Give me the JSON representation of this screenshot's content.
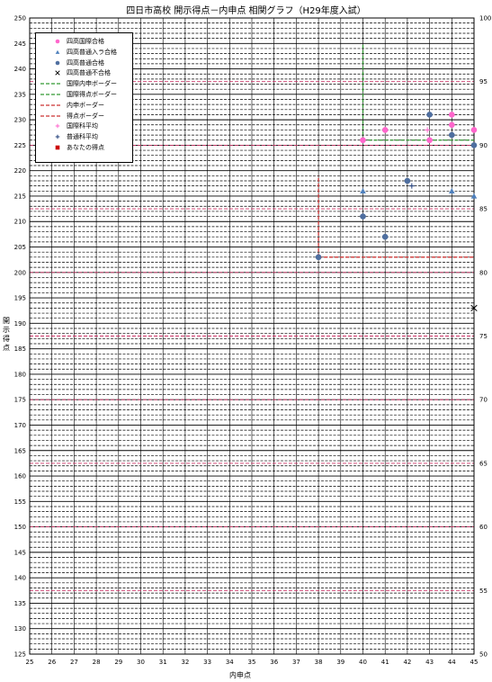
{
  "chart_data": {
    "type": "scatter",
    "title": "四日市高校 開示得点－内申点 相関グラフ（H29年度入試）",
    "xlabel": "内申点",
    "ylabel": "開示得点",
    "xlim": [
      25,
      45
    ],
    "ylim": [
      125,
      250
    ],
    "ylim_right": [
      50,
      100
    ],
    "x_ticks": [
      "25",
      "26",
      "27",
      "28",
      "29",
      "30",
      "31",
      "32",
      "33",
      "34",
      "35",
      "36",
      "37",
      "38",
      "39",
      "40",
      "41",
      "42",
      "43",
      "44",
      "45"
    ],
    "y_ticks": [
      "125",
      "130",
      "135",
      "140",
      "145",
      "150",
      "155",
      "160",
      "165",
      "170",
      "175",
      "180",
      "185",
      "190",
      "195",
      "200",
      "205",
      "210",
      "215",
      "220",
      "225",
      "230",
      "235",
      "240",
      "245",
      "250"
    ],
    "y_ticks_right": [
      "50",
      "55",
      "60",
      "65",
      "70",
      "75",
      "80",
      "85",
      "90",
      "95",
      "100"
    ],
    "right_axis_note": "pink dashed lines mark each 5 on the right axis",
    "grid": true,
    "legend_position": "top-left",
    "series": [
      {
        "name": "四高国際合格",
        "marker": "circle",
        "color": "#ff66cc",
        "points": [
          [
            40,
            226
          ],
          [
            41,
            228
          ],
          [
            43,
            226
          ],
          [
            44,
            231
          ],
          [
            44,
            229
          ],
          [
            45,
            228
          ]
        ]
      },
      {
        "name": "四高普通入ラ合格",
        "marker": "triangle",
        "color": "#4f81bd",
        "points": [
          [
            40,
            216
          ],
          [
            44,
            216
          ],
          [
            45,
            215
          ]
        ]
      },
      {
        "name": "四高普通合格",
        "marker": "circle",
        "color": "#4f6fa0",
        "points": [
          [
            38,
            203
          ],
          [
            40,
            211
          ],
          [
            41,
            207
          ],
          [
            42,
            218
          ],
          [
            43,
            231
          ],
          [
            44,
            227
          ],
          [
            45,
            225
          ]
        ]
      },
      {
        "name": "四高普通不合格",
        "marker": "x",
        "color": "#000000",
        "points": [
          [
            45,
            193
          ]
        ]
      }
    ],
    "borders": [
      {
        "name": "国際内申ボーダー",
        "color": "#339933",
        "style": "dashed",
        "x": 40,
        "y_from": 226,
        "y_to": 245
      },
      {
        "name": "国際得点ボーダー",
        "color": "#339933",
        "style": "dashed",
        "y": 226,
        "x_from": 40,
        "x_to": 45
      },
      {
        "name": "内申ボーダー",
        "color": "#cc3333",
        "style": "dashed",
        "x": 38,
        "y_from": 203,
        "y_to": 219
      },
      {
        "name": "得点ボーダー",
        "color": "#cc3333",
        "style": "dashed",
        "y": 203,
        "x_from": 38,
        "x_to": 45
      }
    ],
    "averages": [
      {
        "name": "国際科平均",
        "marker": "plus",
        "color": "#ff66cc",
        "point": [
          42.9,
          228
        ]
      },
      {
        "name": "普通科平均",
        "marker": "plus",
        "color": "#1f3d7a",
        "point": [
          42.2,
          217
        ]
      }
    ],
    "your_score": {
      "name": "あなたの得点",
      "marker": "square",
      "color": "#cc0000"
    }
  }
}
